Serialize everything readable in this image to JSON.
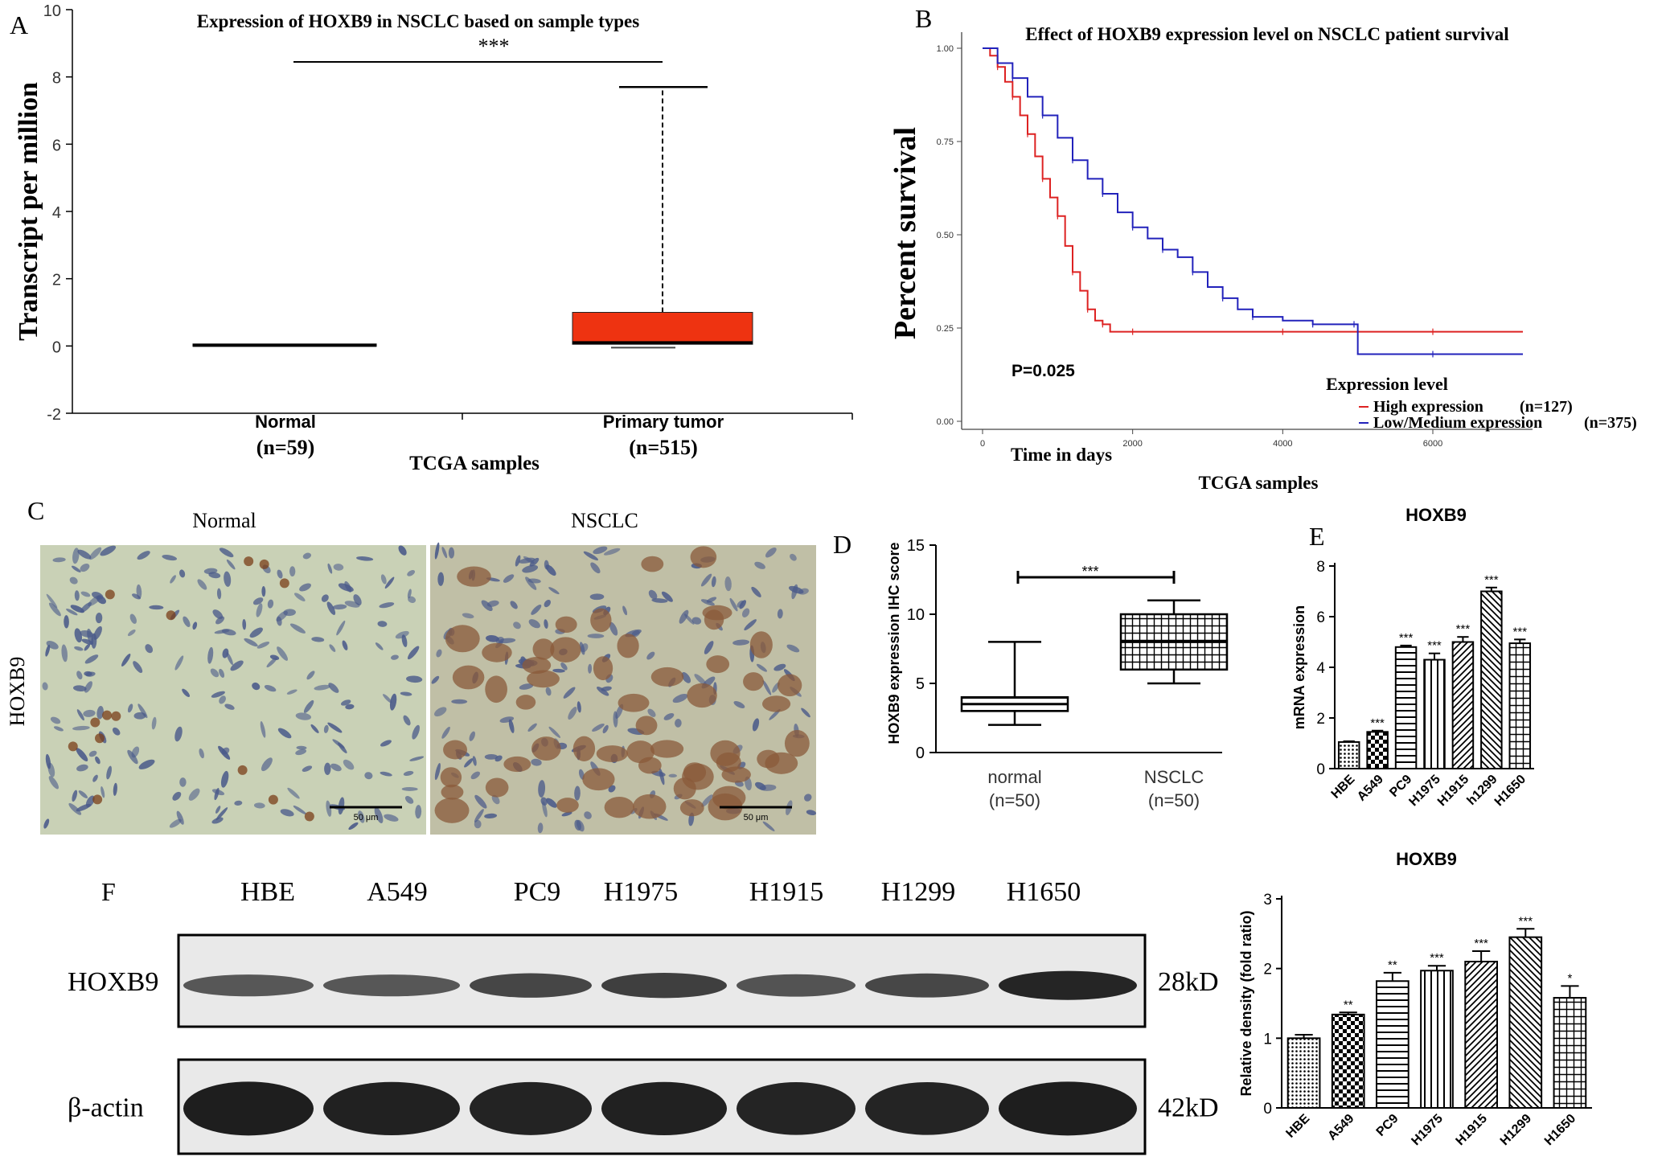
{
  "panel_labels": {
    "a": "A",
    "b": "B",
    "c": "C",
    "d": "D",
    "e": "E",
    "f": "F"
  },
  "colors": {
    "tumor_box": "#ee3311",
    "high_line": "#dd2222",
    "low_line": "#2222bb",
    "tissue_bg": "#c9d1b6",
    "tissue_bg2": "#c0bfa6",
    "blot_band": "#1a1a1a"
  },
  "chart_data": [
    {
      "id": "A",
      "type": "box",
      "title": "Expression of HOXB9 in NSCLC based on sample types",
      "ylabel": "Transcript per million",
      "xlabel": "TCGA samples",
      "ylim": [
        -2,
        10
      ],
      "yticks": [
        "-2",
        "0",
        "2",
        "4",
        "6",
        "8",
        "10"
      ],
      "categories": [
        "Normal",
        "Primary tumor"
      ],
      "category_counts": [
        "(n=59)",
        "(n=515)"
      ],
      "boxes": [
        {
          "min": 0.0,
          "q1": 0.0,
          "median": 0.02,
          "q3": 0.06,
          "max": 0.08
        },
        {
          "min": 0.0,
          "q1": 0.05,
          "median": 0.1,
          "q3": 1.0,
          "max": 7.7
        }
      ],
      "significance": "***"
    },
    {
      "id": "B",
      "type": "line",
      "title": "Effect of HOXB9 expression level on NSCLC patient survival",
      "ylabel": "Percent  survival",
      "xlabel": "Time in days",
      "caption": "TCGA samples",
      "pvalue": "P=0.025",
      "xlim": [
        0,
        7300
      ],
      "ylim": [
        0,
        1.0
      ],
      "xticks": [
        "0",
        "2000",
        "4000",
        "6000"
      ],
      "yticks": [
        "0.00",
        "0.25",
        "0.50",
        "0.75",
        "1.00"
      ],
      "legend_title": "Expression level",
      "series": [
        {
          "name": "High expression",
          "count": "(n=127)",
          "x": [
            0,
            100,
            200,
            300,
            400,
            500,
            600,
            700,
            800,
            900,
            1000,
            1100,
            1200,
            1300,
            1400,
            1500,
            1600,
            1700,
            2000,
            3000,
            4000,
            5000,
            6000,
            7200
          ],
          "y": [
            1.0,
            0.98,
            0.95,
            0.91,
            0.87,
            0.82,
            0.77,
            0.71,
            0.65,
            0.6,
            0.55,
            0.47,
            0.4,
            0.35,
            0.3,
            0.27,
            0.26,
            0.24,
            0.24,
            0.24,
            0.24,
            0.24,
            0.24,
            0.24
          ]
        },
        {
          "name": "Low/Medium expression",
          "count": "(n=375)",
          "x": [
            0,
            200,
            400,
            600,
            800,
            1000,
            1200,
            1400,
            1600,
            1800,
            2000,
            2200,
            2400,
            2600,
            2800,
            3000,
            3200,
            3400,
            3600,
            4000,
            4400,
            4800,
            4950,
            5000,
            6000,
            7200
          ],
          "y": [
            1.0,
            0.96,
            0.92,
            0.87,
            0.82,
            0.76,
            0.7,
            0.65,
            0.61,
            0.56,
            0.52,
            0.49,
            0.46,
            0.44,
            0.4,
            0.36,
            0.33,
            0.3,
            0.28,
            0.27,
            0.26,
            0.26,
            0.26,
            0.18,
            0.18,
            0.18
          ]
        }
      ]
    },
    {
      "id": "D",
      "type": "box",
      "ylabel": "HOXB9 expression IHC score",
      "ylim": [
        0,
        15
      ],
      "yticks": [
        "0",
        "5",
        "10",
        "15"
      ],
      "categories": [
        "normal",
        "NSCLC"
      ],
      "category_counts": [
        "(n=50)",
        "(n=50)"
      ],
      "boxes": [
        {
          "min": 2,
          "q1": 3,
          "median": 3.5,
          "q3": 4,
          "max": 8
        },
        {
          "min": 5,
          "q1": 6,
          "median": 8,
          "q3": 10,
          "max": 11
        }
      ],
      "significance": "***"
    },
    {
      "id": "E",
      "type": "bar",
      "title": "HOXB9",
      "ylabel": "mRNA expression",
      "ylim": [
        0,
        8
      ],
      "yticks": [
        "0",
        "2",
        "4",
        "6",
        "8"
      ],
      "categories": [
        "HBE",
        "A549",
        "PC9",
        "H1975",
        "H1915",
        "h1299",
        "H1650"
      ],
      "values": [
        1.05,
        1.45,
        4.8,
        4.3,
        5.0,
        7.0,
        4.95
      ],
      "errors": [
        0.03,
        0.05,
        0.06,
        0.25,
        0.2,
        0.15,
        0.15
      ],
      "significance": [
        "",
        "***",
        "***",
        "***",
        "***",
        "***",
        "***"
      ]
    },
    {
      "id": "F-quant",
      "type": "bar",
      "title": "HOXB9",
      "ylabel": "Relative density (fold ratio)",
      "ylim": [
        0,
        3
      ],
      "yticks": [
        "0",
        "1",
        "2",
        "3"
      ],
      "categories": [
        "HBE",
        "A549",
        "PC9",
        "H1975",
        "H1915",
        "H1299",
        "H1650"
      ],
      "values": [
        1.0,
        1.34,
        1.82,
        1.97,
        2.1,
        2.45,
        1.58
      ],
      "errors": [
        0.05,
        0.03,
        0.12,
        0.07,
        0.15,
        0.12,
        0.17
      ],
      "significance": [
        "",
        "**",
        "**",
        "***",
        "***",
        "***",
        "*"
      ]
    }
  ],
  "panel_c": {
    "row_label": "HOXB9",
    "col_labels": [
      "Normal",
      "NSCLC"
    ],
    "scale_text": "50 μm"
  },
  "panel_f": {
    "lanes": [
      "HBE",
      "A549",
      "PC9",
      "H1975",
      "H1915",
      "H1299",
      "H1650"
    ],
    "rows": [
      {
        "label": "HOXB9",
        "size": "28kD",
        "intensity": [
          0.55,
          0.55,
          0.68,
          0.72,
          0.58,
          0.66,
          0.92
        ]
      },
      {
        "label": "β-actin",
        "size": "42kD",
        "intensity": [
          0.97,
          0.95,
          0.94,
          0.95,
          0.93,
          0.93,
          0.97
        ]
      }
    ]
  }
}
